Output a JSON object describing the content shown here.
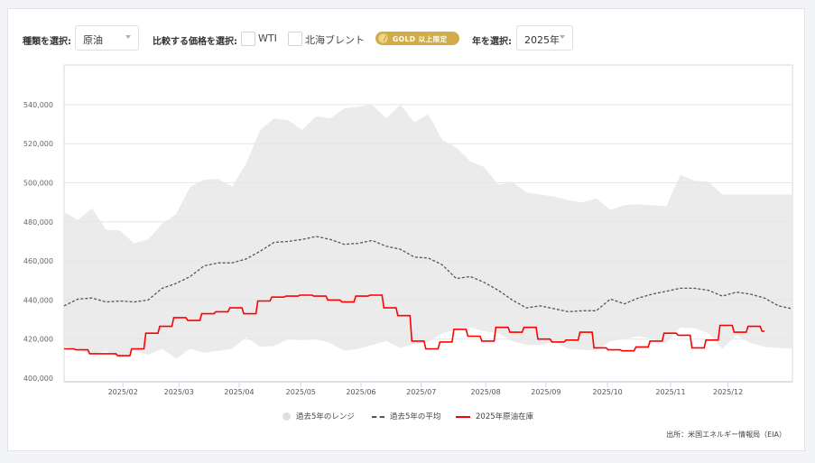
{
  "controls": {
    "type_label": "種類を選択:",
    "type_value": "原油",
    "compare_label": "比較する価格を選択:",
    "compare_options": [
      {
        "label": "WTI",
        "checked": false
      },
      {
        "label": "北海ブレント",
        "checked": false
      }
    ],
    "badge": {
      "icon": "gold-coin-icon",
      "text": "GOLD 以上限定",
      "color": "#d2ac47"
    },
    "year_label": "年を選択:",
    "year_value": "2025年"
  },
  "legend": {
    "range": "過去5年のレンジ",
    "average": "過去5年の平均",
    "current": "2025年原油在庫"
  },
  "source": "出所：米国エネルギー情報局（EIA）",
  "colors": {
    "range_fill": "#ebebeb",
    "average_line": "#555555",
    "current_line": "#ff0000",
    "gold_badge": "#d2ac47"
  },
  "chart_data": {
    "type": "line",
    "title": "",
    "xlabel": "",
    "ylabel": "",
    "ylim": [
      398000,
      560000
    ],
    "yticks": [
      400000,
      420000,
      440000,
      460000,
      480000,
      500000,
      520000,
      540000
    ],
    "ytick_labels": [
      "400,000",
      "420,000",
      "440,000",
      "460,000",
      "480,000",
      "500,000",
      "520,000",
      "540,000"
    ],
    "xtick_labels": [
      "2025/02",
      "2025/03",
      "2025/04",
      "2025/05",
      "2025/06",
      "2025/07",
      "2025/08",
      "2025/09",
      "2025/10",
      "2025/11",
      "2025/12"
    ],
    "xtick_weeks": [
      4.2,
      8.2,
      12.5,
      16.9,
      21.2,
      25.5,
      30.1,
      34.4,
      38.8,
      43.3,
      47.4
    ],
    "grid": true,
    "legend_position": "bottom",
    "x_unit": "week of year (0-52)",
    "series": [
      {
        "name": "過去5年のレンジ (上限)",
        "kind": "range_high",
        "x": [
          0,
          1,
          2,
          3,
          4,
          5,
          6,
          7,
          8,
          9,
          10,
          11,
          12,
          13,
          14,
          15,
          16,
          17,
          18,
          19,
          20,
          21,
          22,
          23,
          24,
          25,
          26,
          27,
          28,
          29,
          30,
          31,
          32,
          33,
          34,
          35,
          36,
          37,
          38,
          39,
          40,
          41,
          42,
          43,
          44,
          45,
          46,
          47,
          48,
          49,
          50,
          51,
          52
        ],
        "values": [
          485000,
          481000,
          487000,
          476000,
          475500,
          469000,
          471000,
          479000,
          484000,
          498000,
          501500,
          502000,
          498000,
          510000,
          527000,
          533000,
          532000,
          527000,
          534000,
          533000,
          538000,
          539000,
          540000,
          533000,
          540000,
          531000,
          535000,
          522000,
          518000,
          511000,
          508000,
          499000,
          500500,
          495000,
          494000,
          493000,
          491000,
          490000,
          492000,
          486000,
          488500,
          489000,
          488500,
          488000,
          504000,
          501000,
          500500,
          494000,
          494000,
          494000,
          494000,
          494000,
          494000
        ]
      },
      {
        "name": "過去5年のレンジ (下限)",
        "kind": "range_low",
        "x": [
          0,
          1,
          2,
          3,
          4,
          5,
          6,
          7,
          8,
          9,
          10,
          11,
          12,
          13,
          14,
          15,
          16,
          17,
          18,
          19,
          20,
          21,
          22,
          23,
          24,
          25,
          26,
          27,
          28,
          29,
          30,
          31,
          32,
          33,
          34,
          35,
          36,
          37,
          38,
          39,
          40,
          41,
          42,
          43,
          44,
          45,
          46,
          47,
          48,
          49,
          50,
          51,
          52
        ],
        "values": [
          416000,
          415000,
          412000,
          414000,
          410000,
          414000,
          412000,
          415000,
          410000,
          415000,
          413000,
          414000,
          415000,
          421000,
          416000,
          416500,
          420000,
          419500,
          420000,
          418000,
          414000,
          415000,
          417000,
          419000,
          415500,
          417500,
          418500,
          423000,
          425000,
          426000,
          424000,
          423000,
          419000,
          417000,
          417000,
          418500,
          415000,
          414500,
          414000,
          419000,
          420000,
          421500,
          420000,
          418000,
          426000,
          425500,
          423000,
          415000,
          422000,
          418000,
          416000,
          415500,
          415000
        ]
      },
      {
        "name": "過去5年の平均",
        "kind": "average",
        "x": [
          0,
          1,
          2,
          3,
          4,
          5,
          6,
          7,
          8,
          9,
          10,
          11,
          12,
          13,
          14,
          15,
          16,
          17,
          18,
          19,
          20,
          21,
          22,
          23,
          24,
          25,
          26,
          27,
          28,
          29,
          30,
          31,
          32,
          33,
          34,
          35,
          36,
          37,
          38,
          39,
          40,
          41,
          42,
          43,
          44,
          45,
          46,
          47,
          48,
          49,
          50,
          51,
          52
        ],
        "values": [
          437000,
          440500,
          441000,
          439000,
          439500,
          439000,
          440000,
          446000,
          448500,
          452000,
          457500,
          459000,
          459000,
          461000,
          465000,
          469500,
          470000,
          471000,
          472500,
          471000,
          468500,
          469000,
          470500,
          467500,
          466000,
          462000,
          461500,
          458000,
          451000,
          452000,
          449000,
          445000,
          440000,
          436000,
          437000,
          435500,
          434000,
          434500,
          434500,
          440500,
          438000,
          441000,
          443000,
          444500,
          446000,
          446000,
          445000,
          442000,
          444000,
          443000,
          441000,
          437000,
          435500
        ]
      },
      {
        "name": "2025年原油在庫",
        "kind": "current",
        "x": [
          0,
          1,
          2,
          3,
          4,
          5,
          6,
          7,
          8,
          9,
          10,
          11,
          12,
          13,
          14,
          15,
          16,
          17,
          18,
          19,
          20,
          21,
          22,
          23,
          24,
          25,
          26,
          27,
          28,
          29,
          30,
          31,
          32,
          33,
          34,
          35,
          36,
          37,
          38,
          39,
          40,
          41,
          42,
          43,
          44,
          45,
          46,
          47,
          48,
          49,
          50
        ],
        "values": [
          415000,
          414500,
          412500,
          412500,
          411500,
          415000,
          423000,
          426500,
          431000,
          429500,
          433000,
          434000,
          436000,
          433000,
          439500,
          441500,
          442000,
          442500,
          442000,
          440000,
          439000,
          442000,
          442500,
          436000,
          432000,
          419000,
          415000,
          418500,
          425000,
          421500,
          419000,
          426000,
          423500,
          426000,
          420000,
          418500,
          419500,
          423500,
          415500,
          414500,
          414000,
          416000,
          419000,
          423000,
          422000,
          415500,
          419500,
          427000,
          423500,
          426500,
          424000
        ]
      }
    ]
  }
}
